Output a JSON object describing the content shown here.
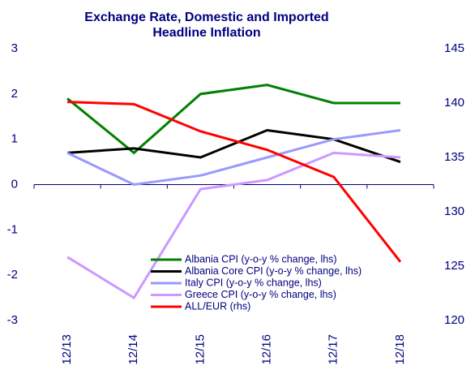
{
  "chart_data": {
    "type": "line",
    "title": "Exchange Rate, Domestic and Imported Headline Inflation",
    "categories": [
      "12/13",
      "12/14",
      "12/15",
      "12/16",
      "12/17",
      "12/18"
    ],
    "series": [
      {
        "name": "Albania CPI (y-o-y % change, lhs)",
        "color": "#008000",
        "values": [
          1.9,
          0.7,
          2.0,
          2.2,
          1.8,
          1.8
        ]
      },
      {
        "name": "Albania Core CPI (y-o-y % change, lhs)",
        "color": "#000000",
        "values": [
          0.7,
          0.8,
          0.6,
          1.2,
          1.0,
          0.5
        ]
      },
      {
        "name": "Italy CPI (y-o-y % change, lhs)",
        "color": "#9999ff",
        "values": [
          0.7,
          0.0,
          0.2,
          0.6,
          1.0,
          1.2
        ]
      },
      {
        "name": "Greece CPI (y-o-y % change, lhs)",
        "color": "#cc99ff",
        "values": [
          -1.6,
          -2.5,
          -0.1,
          0.1,
          0.7,
          0.6
        ]
      },
      {
        "name": "ALL/EUR (rhs)",
        "color": "#ff0000",
        "axis": "y2",
        "values": [
          140.1,
          139.9,
          137.4,
          135.7,
          133.2,
          125.4
        ]
      }
    ],
    "ylim": [
      -3,
      3
    ],
    "yticks": [
      -3,
      -2,
      -1,
      0,
      1,
      2,
      3
    ],
    "y2lim": [
      120,
      145
    ],
    "y2ticks": [
      120,
      125,
      130,
      135,
      140,
      145
    ],
    "legend": "lower right"
  }
}
